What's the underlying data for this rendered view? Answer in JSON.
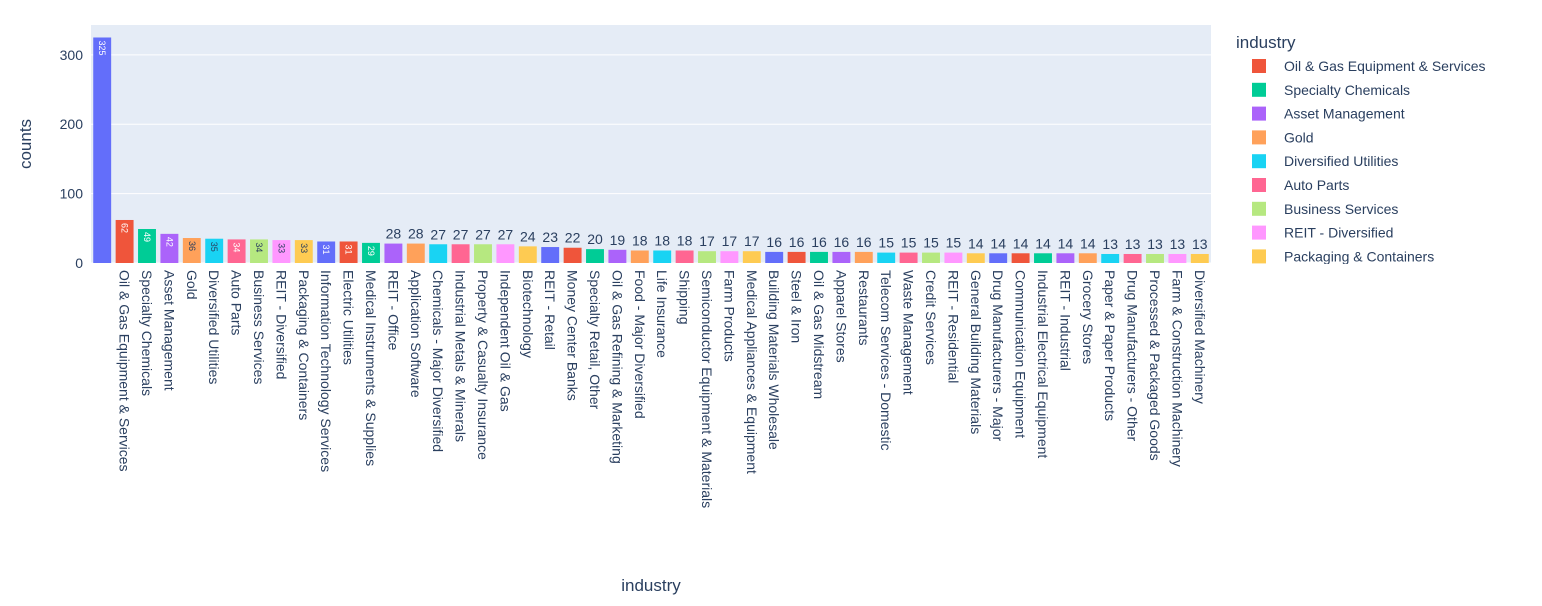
{
  "chart_data": {
    "type": "bar",
    "x_label": "industry",
    "y_label": "counts",
    "legend_title": "industry",
    "categories": [
      null,
      "Oil & Gas Equipment & Services",
      "Specialty Chemicals",
      "Asset Management",
      "Gold",
      "Diversified Utilities",
      "Auto Parts",
      "Business Services",
      "REIT - Diversified",
      "Packaging & Containers",
      "Information Technology Services",
      "Electric Utilities",
      "Medical Instruments & Supplies",
      "REIT - Office",
      "Application Software",
      "Chemicals - Major Diversified",
      "Industrial Metals & Minerals",
      "Property & Casualty Insurance",
      "Independent Oil & Gas",
      "Biotechnology",
      "REIT - Retail",
      "Money Center Banks",
      "Specialty Retail, Other",
      "Oil & Gas Refining & Marketing",
      "Food - Major Diversified",
      "Life Insurance",
      "Shipping",
      "Semiconductor Equipment & Materials",
      "Farm Products",
      "Medical Appliances & Equipment",
      "Building Materials Wholesale",
      "Steel & Iron",
      "Oil & Gas Midstream",
      "Apparel Stores",
      "Restaurants",
      "Telecom Services - Domestic",
      "Waste Management",
      "Credit Services",
      "REIT - Residential",
      "General Building Materials",
      "Drug Manufacturers - Major",
      "Communication Equipment",
      "Industrial Electrical Equipment",
      "REIT - Industrial",
      "Grocery Stores",
      "Paper & Paper Products",
      "Drug Manufacturers - Other",
      "Processed & Packaged Goods",
      "Farm & Construction Machinery",
      "Diversified Machinery"
    ],
    "values": [
      325,
      62,
      49,
      42,
      36,
      35,
      34,
      34,
      33,
      33,
      31,
      31,
      29,
      28,
      28,
      27,
      27,
      27,
      27,
      24,
      23,
      22,
      20,
      19,
      18,
      18,
      18,
      17,
      17,
      17,
      16,
      16,
      16,
      16,
      16,
      15,
      15,
      15,
      15,
      14,
      14,
      14,
      14,
      14,
      14,
      13,
      13,
      13,
      13,
      13
    ],
    "colors": [
      "#636efa",
      "#EF553B",
      "#00cc96",
      "#ab63fa",
      "#FFA15A",
      "#19d3f3",
      "#FF6692",
      "#B6E880",
      "#FF97FF",
      "#FECB52"
    ],
    "ylim": [
      0,
      343
    ],
    "yticks": [
      0,
      100,
      200,
      300
    ],
    "grid": true
  }
}
